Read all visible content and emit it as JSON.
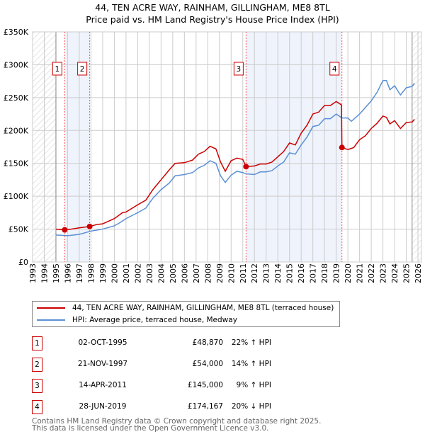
{
  "title": "44, TEN ACRE WAY, RAINHAM, GILLINGHAM, ME8 8TL",
  "subtitle": "Price paid vs. HM Land Registry's House Price Index (HPI)",
  "chart_data": {
    "type": "line",
    "title": "44, TEN ACRE WAY, RAINHAM, GILLINGHAM, ME8 8TL — Price paid vs. HM Land Registry's House Price Index (HPI)",
    "xlim": [
      1993,
      2026.3
    ],
    "ylim": [
      0,
      350000
    ],
    "x_ticks": [
      "1993",
      "1994",
      "1995",
      "1996",
      "1997",
      "1998",
      "1999",
      "2000",
      "2001",
      "2002",
      "2003",
      "2004",
      "2005",
      "2006",
      "2007",
      "2008",
      "2009",
      "2010",
      "2011",
      "2012",
      "2013",
      "2014",
      "2015",
      "2016",
      "2017",
      "2018",
      "2019",
      "2020",
      "2021",
      "2022",
      "2023",
      "2024",
      "2025",
      "2026"
    ],
    "y_ticks": [
      {
        "v": 0,
        "label": "£0"
      },
      {
        "v": 50000,
        "label": "£50K"
      },
      {
        "v": 100000,
        "label": "£100K"
      },
      {
        "v": 150000,
        "label": "£150K"
      },
      {
        "v": 200000,
        "label": "£200K"
      },
      {
        "v": 250000,
        "label": "£250K"
      },
      {
        "v": 300000,
        "label": "£300K"
      },
      {
        "v": 350000,
        "label": "£350K"
      }
    ],
    "grid": true,
    "hatched_ranges": [
      [
        1993,
        1995
      ],
      [
        2025.5,
        2026.3
      ]
    ],
    "shaded_ranges": [
      [
        1995.75,
        1997.89
      ],
      [
        2011.28,
        2019.49
      ]
    ],
    "series": [
      {
        "name": "44, TEN ACRE WAY, RAINHAM, GILLINGHAM, ME8 8TL (terraced house)",
        "color": "#cc0000",
        "x": [
          1995,
          1995.75,
          1996.3,
          1997,
          1997.89,
          1998.5,
          1999,
          2000,
          2000.7,
          2001,
          2002,
          2002.7,
          2003.3,
          2004,
          2004.7,
          2005.2,
          2006,
          2006.7,
          2007.2,
          2007.7,
          2008.2,
          2008.7,
          2009.1,
          2009.5,
          2010,
          2010.5,
          2011,
          2011.28,
          2012,
          2012.5,
          2013,
          2013.5,
          2014,
          2014.5,
          2015,
          2015.5,
          2016,
          2016.5,
          2017,
          2017.5,
          2018,
          2018.5,
          2019,
          2019.45,
          2019.49,
          2020,
          2020.5,
          2021,
          2021.5,
          2022,
          2022.5,
          2023,
          2023.3,
          2023.6,
          2024,
          2024.5,
          2025,
          2025.5,
          2025.7
        ],
        "y": [
          50000,
          48870,
          50000,
          52000,
          54000,
          57000,
          58000,
          66000,
          75000,
          76000,
          87000,
          94000,
          110000,
          125000,
          140000,
          150000,
          151000,
          155000,
          164000,
          168000,
          176000,
          172000,
          152000,
          138000,
          154000,
          158000,
          156000,
          145000,
          146000,
          149000,
          149000,
          152000,
          160000,
          168000,
          181000,
          178000,
          196000,
          208000,
          225000,
          228000,
          238000,
          238000,
          244000,
          239000,
          174167,
          171000,
          174000,
          186000,
          192000,
          203000,
          211000,
          222000,
          220000,
          210000,
          215000,
          203000,
          212000,
          213000,
          217000
        ]
      },
      {
        "name": "HPI: Average price, terraced house, Medway",
        "color": "#5b8fd4",
        "x": [
          1995,
          1996,
          1997,
          1998,
          1999,
          2000,
          2000.5,
          2001,
          2002,
          2002.7,
          2003.3,
          2004,
          2004.7,
          2005.2,
          2006,
          2006.7,
          2007.2,
          2007.7,
          2008.2,
          2008.7,
          2009.1,
          2009.5,
          2010,
          2010.5,
          2011,
          2011.3,
          2012,
          2012.5,
          2013,
          2013.5,
          2014,
          2014.5,
          2015,
          2015.5,
          2016,
          2016.5,
          2017,
          2017.5,
          2018,
          2018.5,
          2019,
          2019.5,
          2020,
          2020.3,
          2021,
          2021.5,
          2022,
          2022.5,
          2023,
          2023.3,
          2023.6,
          2024,
          2024.5,
          2025,
          2025.5,
          2025.7
        ],
        "y": [
          41000,
          40000,
          42000,
          47000,
          50000,
          55000,
          60000,
          66000,
          75000,
          82000,
          97000,
          110000,
          120000,
          131000,
          133000,
          136000,
          143000,
          147000,
          154000,
          150000,
          131000,
          121000,
          132000,
          138000,
          136000,
          134000,
          133000,
          137000,
          137000,
          139000,
          146000,
          152000,
          166000,
          164000,
          178000,
          190000,
          206000,
          208000,
          218000,
          218000,
          225000,
          219000,
          219000,
          214000,
          225000,
          235000,
          245000,
          258000,
          276000,
          276000,
          262000,
          268000,
          254000,
          265000,
          267000,
          272000
        ]
      }
    ],
    "sales": [
      {
        "n": "1",
        "x": 1995.75,
        "date": "02-OCT-1995",
        "price": 48870,
        "price_label": "£48,870",
        "hpi": "22% ↑ HPI"
      },
      {
        "n": "2",
        "x": 1997.89,
        "date": "21-NOV-1997",
        "price": 54000,
        "price_label": "£54,000",
        "hpi": "14% ↑ HPI"
      },
      {
        "n": "3",
        "x": 2011.28,
        "date": "14-APR-2011",
        "price": 145000,
        "price_label": "£145,000",
        "hpi": "9% ↑ HPI"
      },
      {
        "n": "4",
        "x": 2019.49,
        "date": "28-JUN-2019",
        "price": 174167,
        "price_label": "£174,167",
        "hpi": "20% ↓ HPI"
      }
    ]
  },
  "legend": {
    "red": "44, TEN ACRE WAY, RAINHAM, GILLINGHAM, ME8 8TL (terraced house)",
    "blue": "HPI: Average price, terraced house, Medway"
  },
  "footer": {
    "line1": "Contains HM Land Registry data © Crown copyright and database right 2025.",
    "line2": "This data is licensed under the Open Government Licence v3.0."
  }
}
